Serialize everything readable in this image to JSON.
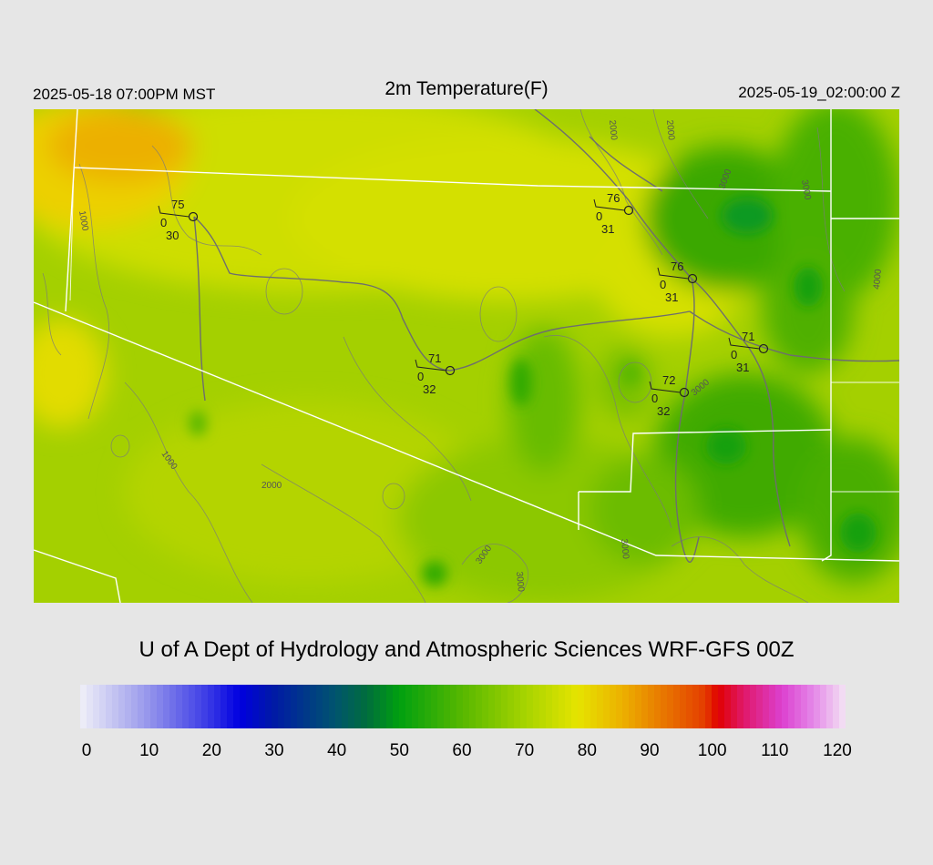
{
  "header": {
    "valid_local": "2025-05-18 07:00PM MST",
    "title": "2m Temperature(F)",
    "valid_utc": "2025-05-19_02:00:00 Z"
  },
  "credit": "U of A Dept of Hydrology and Atmospheric Sciences WRF-GFS 00Z",
  "colorbar": {
    "min": 0,
    "max": 120,
    "ticks": [
      "0",
      "10",
      "20",
      "30",
      "40",
      "50",
      "60",
      "70",
      "80",
      "90",
      "100",
      "110",
      "120"
    ],
    "stops": [
      {
        "value": 0,
        "color": "#f0f0f8"
      },
      {
        "value": 10,
        "color": "#9c9cec"
      },
      {
        "value": 20,
        "color": "#3a3ae6"
      },
      {
        "value": 25,
        "color": "#0000e0"
      },
      {
        "value": 30,
        "color": "#0018a8"
      },
      {
        "value": 40,
        "color": "#00546e"
      },
      {
        "value": 45,
        "color": "#006e3c"
      },
      {
        "value": 50,
        "color": "#00a010"
      },
      {
        "value": 60,
        "color": "#58b800"
      },
      {
        "value": 70,
        "color": "#a8d400"
      },
      {
        "value": 78,
        "color": "#e6e400"
      },
      {
        "value": 85,
        "color": "#ecb000"
      },
      {
        "value": 92,
        "color": "#e87200"
      },
      {
        "value": 98,
        "color": "#e43c00"
      },
      {
        "value": 100,
        "color": "#e00000"
      },
      {
        "value": 104,
        "color": "#e01868"
      },
      {
        "value": 110,
        "color": "#dc40d0"
      },
      {
        "value": 115,
        "color": "#e488e8"
      },
      {
        "value": 120,
        "color": "#f4e4f4"
      }
    ]
  },
  "map": {
    "contour_labels": [
      "1000",
      "1000",
      "2000",
      "2000",
      "2000",
      "3000",
      "3000",
      "3000",
      "3000",
      "3000",
      "3000",
      "4000"
    ],
    "stations": [
      {
        "id": "station-1",
        "temp": "75",
        "wind": "0",
        "dew": "30"
      },
      {
        "id": "station-2",
        "temp": "76",
        "wind": "0",
        "dew": "31"
      },
      {
        "id": "station-3",
        "temp": "76",
        "wind": "0",
        "dew": "31"
      },
      {
        "id": "station-4",
        "temp": "71",
        "wind": "0",
        "dew": "32"
      },
      {
        "id": "station-5",
        "temp": "72",
        "wind": "0",
        "dew": "32"
      },
      {
        "id": "station-6",
        "temp": "71",
        "wind": "0",
        "dew": "31"
      }
    ]
  }
}
